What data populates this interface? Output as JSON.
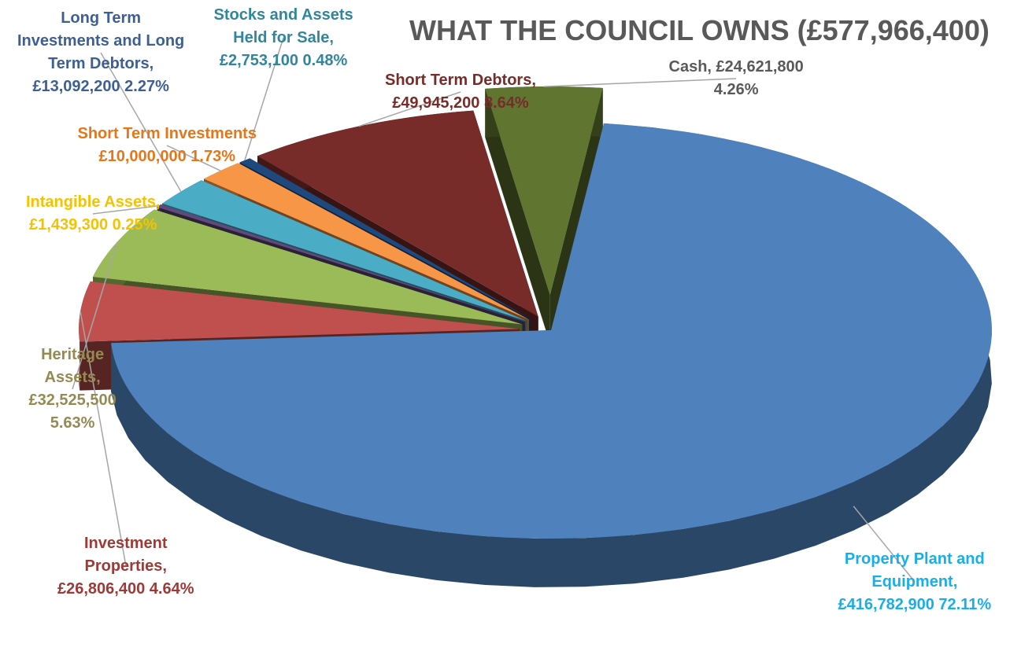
{
  "chart_data": {
    "type": "pie",
    "title": "WHAT THE COUNCIL OWNS (£577,966,400)",
    "series": [
      {
        "values": [
          {
            "category": "Property Plant and Equipment",
            "value": 416782900,
            "percent": 72.11,
            "color": "#4f81bd",
            "label_lines": [
              "Property Plant and",
              "Equipment,",
              "£416,782,900 72.11%"
            ],
            "label_color": "#19aee8"
          },
          {
            "category": "Investment Properties",
            "value": 26806400,
            "percent": 4.64,
            "color": "#c0504d",
            "label_lines": [
              "Investment",
              "Properties,",
              "£26,806,400 4.64%"
            ],
            "label_color": "#9b3a36"
          },
          {
            "category": "Heritage Assets",
            "value": 32525500,
            "percent": 5.63,
            "color": "#9bbb59",
            "label_lines": [
              "Heritage",
              "Assets,",
              "£32,525,500",
              "5.63%"
            ],
            "label_color": "#948a54"
          },
          {
            "category": "Intangible Assets",
            "value": 1439300,
            "percent": 0.25,
            "color": "#604a7b",
            "label_lines": [
              "Intangible Assets,",
              "£1,439,300 0.25%"
            ],
            "label_color": "#f6c200"
          },
          {
            "category": "Long Term Investments and Long Term Debtors",
            "value": 13092200,
            "percent": 2.27,
            "color": "#4bacc6",
            "label_lines": [
              "Long Term",
              "Investments and Long",
              "Term Debtors,",
              "£13,092,200 2.27%"
            ],
            "label_color": "#3e5f93"
          },
          {
            "category": "Short Term Investments",
            "value": 10000000,
            "percent": 1.73,
            "color": "#f79646",
            "label_lines": [
              "Short Term Investments",
              "£10,000,000 1.73%"
            ],
            "label_color": "#e4761b"
          },
          {
            "category": "Stocks and Assets Held for Sale",
            "value": 2753100,
            "percent": 0.48,
            "color": "#1f497d",
            "label_lines": [
              "Stocks and Assets",
              "Held for Sale,",
              "£2,753,100 0.48%"
            ],
            "label_color": "#31859c"
          },
          {
            "category": "Short Term Debtors",
            "value": 49945200,
            "percent": 8.64,
            "color": "#772c2a",
            "label_lines": [
              "Short Term Debtors,",
              "£49,945,200  8.64%"
            ],
            "label_color": "#772c2a"
          },
          {
            "category": "Cash",
            "value": 24621800,
            "percent": 4.26,
            "color": "#5f7530",
            "label_lines": [
              "Cash, £24,621,800",
              "4.26%"
            ],
            "label_color": "#595959"
          }
        ]
      }
    ],
    "legend": "none",
    "data_labels": "outside-with-leader-lines",
    "style": "3d-exploded"
  }
}
